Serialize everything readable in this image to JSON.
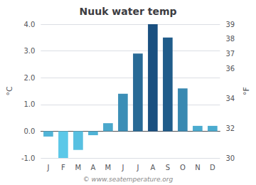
{
  "chart_data": {
    "type": "bar",
    "title": "Nuuk water temp",
    "categories": [
      "J",
      "F",
      "M",
      "A",
      "M",
      "J",
      "J",
      "A",
      "S",
      "O",
      "N",
      "D"
    ],
    "values": [
      -0.2,
      -1.0,
      -0.7,
      -0.15,
      0.3,
      1.4,
      2.9,
      4.0,
      3.5,
      1.6,
      0.2,
      0.2
    ],
    "colors": [
      "#50b4d7",
      "#5bc8e8",
      "#57c0e1",
      "#4fb3d6",
      "#4aa8cc",
      "#3b8eb6",
      "#286a96",
      "#1a5080",
      "#205c8a",
      "#3989b1",
      "#4babcf",
      "#4babcf"
    ],
    "ylabel": "°C",
    "ylim": [
      -1.0,
      4.0
    ],
    "yticks": [
      {
        "value": -1.0,
        "label": "-1.0"
      },
      {
        "value": 0.0,
        "label": "0.0"
      },
      {
        "value": 1.0,
        "label": "1.0"
      },
      {
        "value": 2.0,
        "label": "2.0"
      },
      {
        "value": 3.0,
        "label": "3.0"
      },
      {
        "value": 4.0,
        "label": "4.0"
      }
    ],
    "y2label": "°F",
    "y2lim": [
      30,
      39
    ],
    "y2ticks": [
      30,
      32,
      34,
      36,
      37,
      38,
      39
    ],
    "annotation": "© www.seatemperature.org",
    "grid": true
  }
}
